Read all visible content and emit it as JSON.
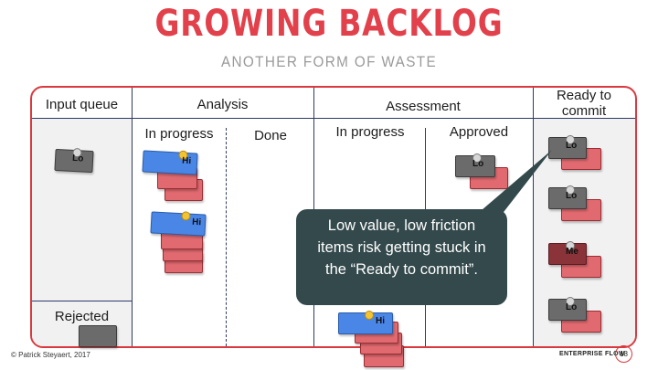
{
  "slide": {
    "title": "GROWING BACKLOG",
    "subtitle": "ANOTHER FORM OF WASTE"
  },
  "board": {
    "columns": {
      "input_queue": "Input queue",
      "analysis": "Analysis",
      "assessment": "Assessment",
      "ready_to_commit_line1": "Ready to",
      "ready_to_commit_line2": "commit"
    },
    "subcolumns": {
      "analysis_in_progress": "In progress",
      "analysis_done": "Done",
      "assessment_in_progress": "In progress",
      "assessment_approved": "Approved"
    },
    "rejected_label": "Rejected"
  },
  "cards": {
    "lo": "Lo",
    "hi": "Hi",
    "me": "Me"
  },
  "callout": {
    "line1": "Low value, low friction",
    "line2": "items risk getting stuck in",
    "line3": "the “Ready to commit”."
  },
  "footer": {
    "copyright": "© Patrick Steyaert, 2017",
    "brand": "ENTERPRISE FLOW",
    "page_number": "18"
  },
  "colors": {
    "accent": "#e2404a",
    "grid_lines": "#2e3a66",
    "card_red": "#e06a70",
    "card_grey": "#6b6b6b",
    "card_blue": "#4a86e6",
    "callout_bg": "#33494c"
  }
}
